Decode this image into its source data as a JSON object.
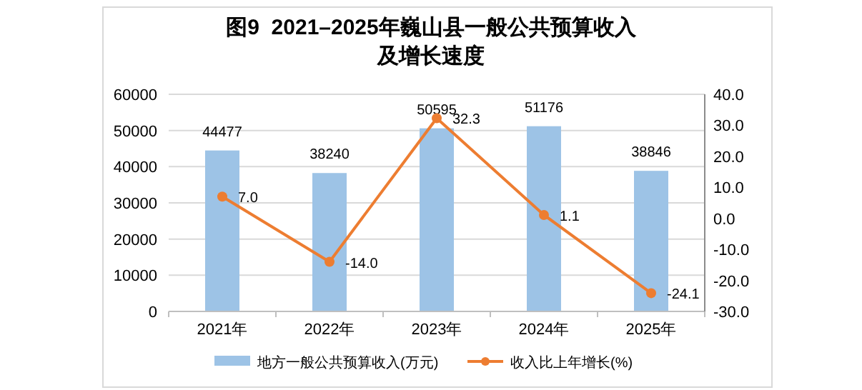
{
  "chart_data": {
    "type": "bar",
    "title": "图9  2021–2025年巍山县一般公共预算收入及增长速度",
    "categories": [
      "2021年",
      "2022年",
      "2023年",
      "2024年",
      "2025年"
    ],
    "series": [
      {
        "name": "地方一般公共预算收入(万元)",
        "color": "#9dc3e6",
        "values": [
          44477,
          38240,
          50595,
          51176,
          38846
        ],
        "value_labels": [
          "44477",
          "38240",
          "50595",
          "51176",
          "38846"
        ]
      },
      {
        "name": "收入比上年增长(%)",
        "type": "line",
        "axis": "y2",
        "color": "#ed7d31",
        "values": [
          7.0,
          -14.0,
          32.3,
          1.1,
          -24.1
        ],
        "value_labels": [
          "7.0",
          "-14.0",
          "32.3",
          "1.1",
          "-24.1"
        ],
        "marker": "circle"
      }
    ],
    "ylim": [
      0,
      60000
    ],
    "yticks": [
      0,
      10000,
      20000,
      30000,
      40000,
      50000,
      60000
    ],
    "y2lim": [
      -30,
      40
    ],
    "y2ticks": [
      {
        "value": -30,
        "label": "-30.0"
      },
      {
        "value": -20,
        "label": "-20.0"
      },
      {
        "value": -10,
        "label": "-10.0"
      },
      {
        "value": 0,
        "label": "0.0"
      },
      {
        "value": 10,
        "label": "10.0"
      },
      {
        "value": 20,
        "label": "20.0"
      },
      {
        "value": 30,
        "label": "30.0"
      },
      {
        "value": 40,
        "label": "40.0"
      }
    ],
    "grid": "y",
    "legend": "bottom"
  }
}
